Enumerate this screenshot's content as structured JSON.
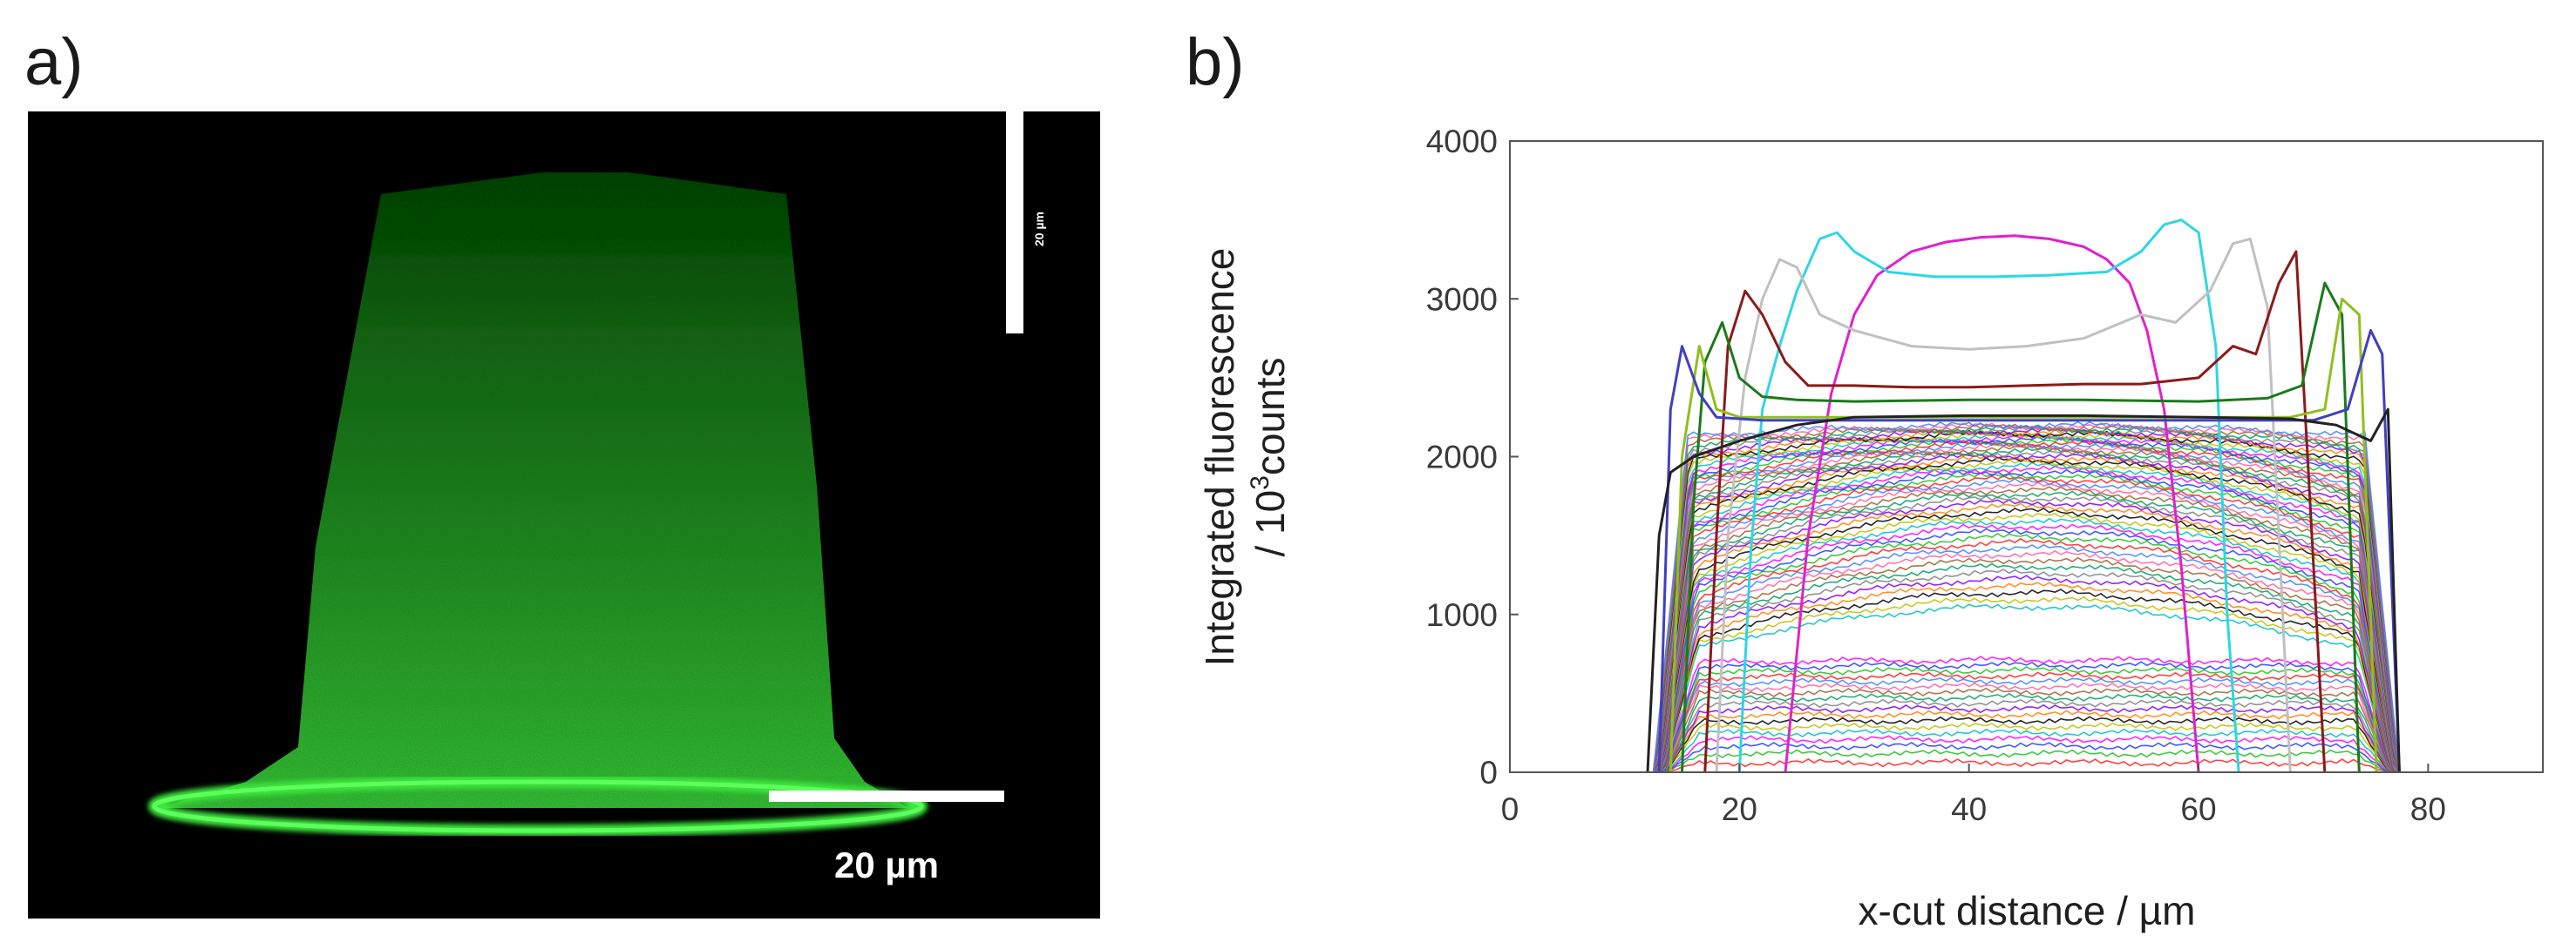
{
  "panels": {
    "a_label": "a)",
    "b_label": "b)"
  },
  "micrograph": {
    "kind": "confocal fluorescence image",
    "fluorescence_color": "#3ee63e",
    "background_color": "#000000",
    "scale_bar_main": "20 µm",
    "scale_bar_vertical": "20 µm"
  },
  "chart_data": {
    "type": "line",
    "title": "",
    "xlabel": "x-cut distance / µm",
    "ylabel_line1": "Integrated fluorescence",
    "ylabel_line2_prefix": "/ 10",
    "ylabel_line2_sup": "3",
    "ylabel_line2_suffix": "counts",
    "xlim": [
      0,
      90
    ],
    "ylim": [
      0,
      4000
    ],
    "xticks": [
      0,
      20,
      40,
      60,
      80
    ],
    "xtick_labels": [
      "0",
      "20",
      "40",
      "60",
      "80"
    ],
    "yticks": [
      0,
      1000,
      2000,
      3000,
      4000
    ],
    "ytick_labels": [
      "0",
      "1000",
      "2000",
      "3000",
      "4000"
    ],
    "grid": false,
    "legend": "none",
    "family_note_profile_count": 70,
    "highlighted_series": [
      {
        "color": "#e020d0",
        "x": [
          24,
          26,
          28,
          30,
          32,
          35,
          38,
          41,
          44,
          47,
          50,
          52,
          54,
          55.5,
          57,
          58.5,
          60
        ],
        "y": [
          0,
          1500,
          2400,
          2900,
          3150,
          3300,
          3360,
          3390,
          3400,
          3380,
          3330,
          3250,
          3100,
          2800,
          2300,
          1300,
          0
        ]
      },
      {
        "color": "#2ed6e6",
        "x": [
          20,
          21,
          22,
          23.5,
          25,
          27,
          28.5,
          30,
          33,
          37,
          42,
          47,
          52,
          55,
          57,
          58.5,
          60,
          61.5,
          62.5,
          63.5
        ],
        "y": [
          0,
          1400,
          2300,
          2700,
          3050,
          3380,
          3420,
          3300,
          3170,
          3140,
          3140,
          3150,
          3170,
          3300,
          3470,
          3500,
          3420,
          2700,
          1000,
          0
        ]
      },
      {
        "color": "#c0c0c0",
        "x": [
          18,
          19,
          20.5,
          22,
          23.5,
          25,
          27,
          30,
          35,
          40,
          45,
          50,
          55,
          58,
          61,
          63,
          64.5,
          66,
          67,
          68
        ],
        "y": [
          0,
          1500,
          2500,
          3000,
          3250,
          3200,
          2900,
          2800,
          2700,
          2680,
          2700,
          2750,
          2900,
          2850,
          3050,
          3350,
          3380,
          2950,
          1500,
          0
        ]
      },
      {
        "color": "#8b1a1a",
        "x": [
          17,
          18,
          19,
          20.5,
          22,
          24,
          26,
          30,
          35,
          40,
          45,
          50,
          55,
          60,
          63,
          65,
          67,
          68.5,
          69.5,
          71
        ],
        "y": [
          0,
          1500,
          2700,
          3050,
          2900,
          2600,
          2450,
          2450,
          2440,
          2440,
          2450,
          2460,
          2460,
          2500,
          2700,
          2650,
          3100,
          3300,
          2000,
          0
        ]
      },
      {
        "color": "#1a7a1a",
        "x": [
          15,
          16,
          17,
          18.5,
          20,
          22,
          25,
          30,
          40,
          50,
          60,
          66,
          69,
          71,
          72.5,
          74
        ],
        "y": [
          0,
          1700,
          2600,
          2850,
          2500,
          2380,
          2360,
          2350,
          2360,
          2360,
          2350,
          2370,
          2450,
          3100,
          2900,
          0
        ]
      },
      {
        "color": "#8fbf20",
        "x": [
          14,
          15,
          16.5,
          18,
          20,
          24,
          30,
          40,
          50,
          60,
          68,
          71,
          72.5,
          74,
          75.5
        ],
        "y": [
          0,
          2000,
          2700,
          2300,
          2250,
          2250,
          2250,
          2250,
          2250,
          2250,
          2250,
          2300,
          3000,
          2900,
          0
        ]
      },
      {
        "color": "#4040c0",
        "x": [
          13,
          14,
          15,
          16.5,
          18,
          22,
          30,
          40,
          50,
          60,
          70,
          73,
          75,
          76,
          77.5
        ],
        "y": [
          0,
          2300,
          2700,
          2400,
          2250,
          2230,
          2230,
          2230,
          2230,
          2230,
          2230,
          2300,
          2800,
          2650,
          0
        ]
      },
      {
        "color": "#222222",
        "x": [
          12,
          13,
          14,
          16,
          20,
          25,
          30,
          40,
          50,
          60,
          68,
          72,
          75,
          76.5,
          77.5
        ],
        "y": [
          0,
          1500,
          1900,
          2000,
          2100,
          2200,
          2250,
          2260,
          2260,
          2250,
          2240,
          2200,
          2100,
          2300,
          0
        ]
      }
    ]
  }
}
